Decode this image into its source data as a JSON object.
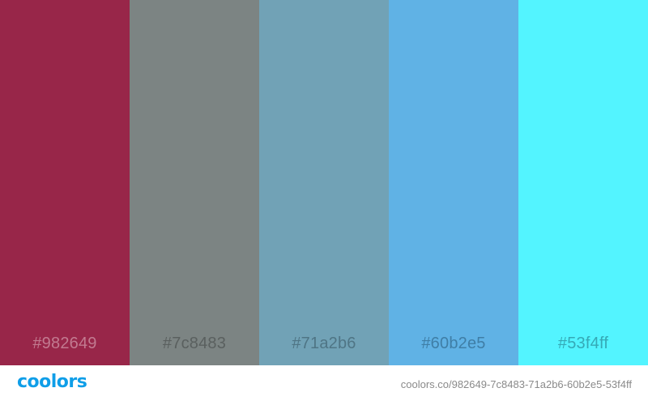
{
  "palette": {
    "swatches": [
      {
        "hex": "#982649",
        "label": "#982649",
        "text_color": "#c27a90"
      },
      {
        "hex": "#7c8483",
        "label": "#7c8483",
        "text_color": "#5a605f"
      },
      {
        "hex": "#71a2b6",
        "label": "#71a2b6",
        "text_color": "#4f7585"
      },
      {
        "hex": "#60b2e5",
        "label": "#60b2e5",
        "text_color": "#3f7ea6"
      },
      {
        "hex": "#53f4ff",
        "label": "#53f4ff",
        "text_color": "#35a9b6"
      }
    ]
  },
  "footer": {
    "logo_text": "coolors",
    "logo_color": "#0f9ee8",
    "url": "coolors.co/982649-7c8483-71a2b6-60b2e5-53f4ff"
  }
}
